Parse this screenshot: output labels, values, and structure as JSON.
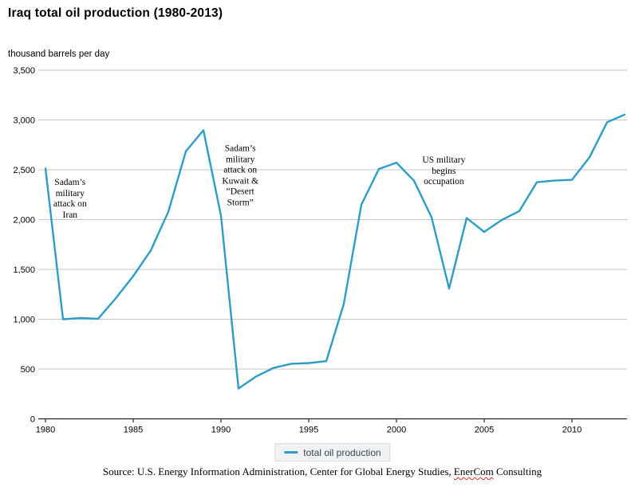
{
  "title": "Iraq total oil production (1980-2013)",
  "units_label": "thousand barrels per day",
  "legend": {
    "label": "total oil production"
  },
  "source": {
    "prefix": "Source: U.S. Energy Information Administration, Center for Global Energy Studies, ",
    "flagged": "EnerCom",
    "suffix": " Consulting"
  },
  "colors": {
    "line": "#2d9dc6",
    "grid": "#c6c6c6",
    "axis": "#000000",
    "legend_bg": "#eff1f2",
    "legend_border": "#dadddf",
    "spellcheck_underline": "#d93025"
  },
  "chart_data": {
    "type": "line",
    "title": "Iraq total oil production (1980-2013)",
    "xlabel": "",
    "ylabel": "thousand barrels per day",
    "xlim": [
      1980,
      2013
    ],
    "ylim": [
      0,
      3500
    ],
    "grid": "horizontal",
    "legend_position": "bottom",
    "x_ticks": [
      1980,
      1985,
      1990,
      1995,
      2000,
      2005,
      2010
    ],
    "y_ticks": [
      0,
      500,
      1000,
      1500,
      2000,
      2500,
      3000,
      3500
    ],
    "y_tick_labels": [
      "0",
      "500",
      "1,000",
      "1,500",
      "2,000",
      "2,500",
      "3,000",
      "3,500"
    ],
    "series": [
      {
        "name": "total oil production",
        "x": [
          1980,
          1981,
          1982,
          1983,
          1984,
          1985,
          1986,
          1987,
          1988,
          1989,
          1990,
          1991,
          1992,
          1993,
          1994,
          1995,
          1996,
          1997,
          1998,
          1999,
          2000,
          2001,
          2002,
          2003,
          2004,
          2005,
          2006,
          2007,
          2008,
          2009,
          2010,
          2011,
          2012,
          2013
        ],
        "values": [
          2514,
          1000,
          1012,
          1005,
          1209,
          1433,
          1690,
          2079,
          2685,
          2897,
          2040,
          305,
          425,
          512,
          553,
          560,
          579,
          1155,
          2150,
          2508,
          2571,
          2390,
          2023,
          1308,
          2015,
          1877,
          1996,
          2086,
          2375,
          2391,
          2399,
          2626,
          2977,
          3054
        ]
      }
    ],
    "annotations": [
      {
        "lines": [
          "Sadam’s",
          "military",
          "attack on",
          "Iran"
        ],
        "x_year": 1981.4,
        "y_value": 2204
      },
      {
        "lines": [
          "Sadam’s",
          "military",
          "attack on",
          "Kuwait &",
          "“Desert",
          "Storm”"
        ],
        "x_year": 1991.1,
        "y_value": 2436
      },
      {
        "lines": [
          "US military",
          "begins",
          "occupation"
        ],
        "x_year": 2002.7,
        "y_value": 2484
      }
    ]
  }
}
